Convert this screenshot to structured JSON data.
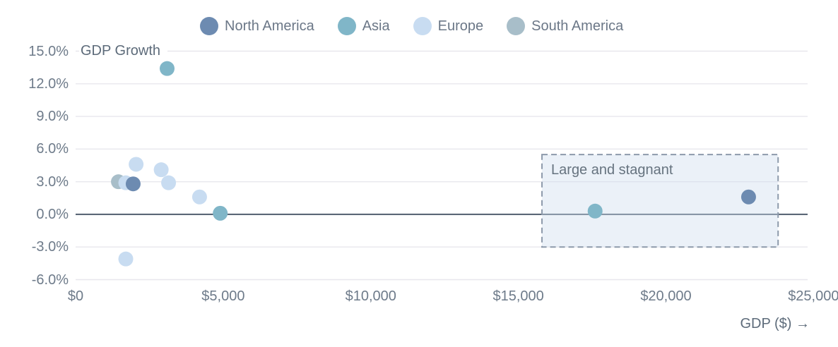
{
  "chart_data": {
    "type": "scatter",
    "title": "",
    "xlabel": "GDP ($) →",
    "ylabel": "GDP Growth",
    "xlim": [
      0,
      24800
    ],
    "ylim": [
      -6,
      15
    ],
    "grid": true,
    "legend_position": "top",
    "x_ticks": [
      {
        "value": 0,
        "label": "$0"
      },
      {
        "value": 5000,
        "label": "$5,000"
      },
      {
        "value": 10000,
        "label": "$10,000"
      },
      {
        "value": 15000,
        "label": "$15,000"
      },
      {
        "value": 20000,
        "label": "$20,000"
      },
      {
        "value": 25000,
        "label": "$25,000"
      }
    ],
    "y_ticks": [
      {
        "value": 15,
        "label": "15.0%"
      },
      {
        "value": 12,
        "label": "12.0%"
      },
      {
        "value": 9,
        "label": "9.0%"
      },
      {
        "value": 6,
        "label": "6.0%"
      },
      {
        "value": 3,
        "label": "3.0%"
      },
      {
        "value": 0,
        "label": "0.0%"
      },
      {
        "value": -3,
        "label": "-3.0%"
      },
      {
        "value": -6,
        "label": "-6.0%"
      }
    ],
    "series": [
      {
        "name": "North America",
        "color": "#6d8bb1",
        "points": [
          {
            "x": 1950,
            "y": 2.8
          },
          {
            "x": 22800,
            "y": 1.6
          }
        ]
      },
      {
        "name": "Asia",
        "color": "#80b6c8",
        "points": [
          {
            "x": 3100,
            "y": 13.4
          },
          {
            "x": 4900,
            "y": 0.1
          },
          {
            "x": 17600,
            "y": 0.3
          }
        ]
      },
      {
        "name": "Europe",
        "color": "#c8dcf1",
        "points": [
          {
            "x": 2050,
            "y": 4.6
          },
          {
            "x": 2900,
            "y": 4.1
          },
          {
            "x": 1700,
            "y": 2.9
          },
          {
            "x": 3150,
            "y": 2.9
          },
          {
            "x": 4200,
            "y": 1.6
          },
          {
            "x": 1700,
            "y": -4.1
          }
        ]
      },
      {
        "name": "South America",
        "color": "#a8bec9",
        "points": [
          {
            "x": 1450,
            "y": 3.0
          }
        ]
      }
    ],
    "draw_order": [
      "South America",
      "Europe",
      "Asia",
      "North America"
    ],
    "annotation_box": {
      "label": "Large and stagnant",
      "x_range": [
        15800,
        23800
      ],
      "y_range": [
        -3,
        5.5
      ],
      "border_color": "#8d9aab",
      "fill_color": "rgba(205,219,238,0.4)"
    },
    "style_colors": {
      "gridline": "#e8e7ed",
      "zero_line": "#5b6877",
      "tick_text": "#6e7b8a",
      "axis_title_text": "#5d6b7a",
      "background": "#ffffff"
    },
    "point_radius": 10.5
  }
}
